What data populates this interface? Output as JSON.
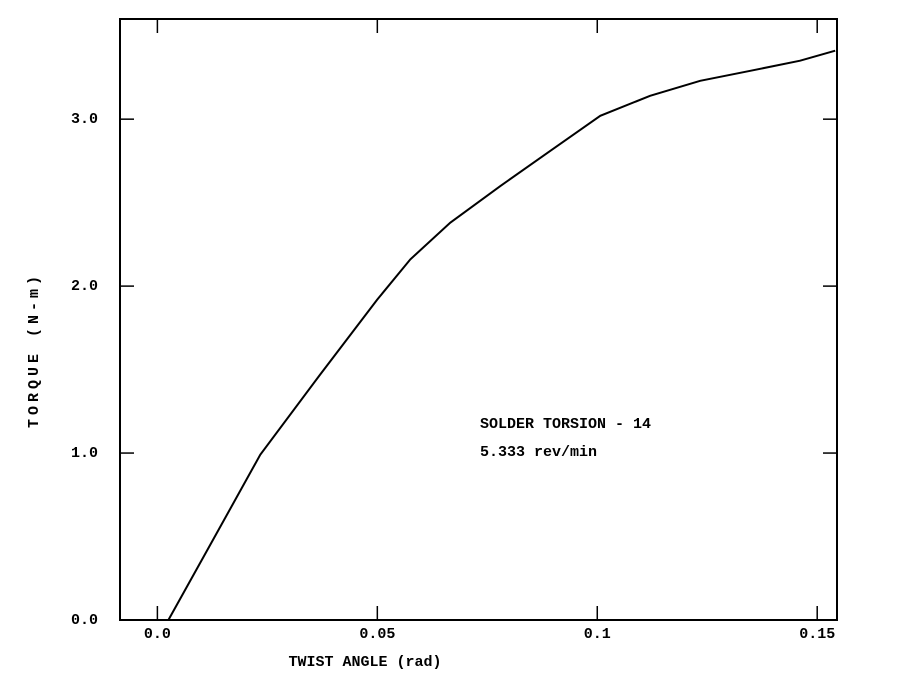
{
  "chart_data": {
    "type": "line",
    "xlabel": "TWIST ANGLE (rad)",
    "ylabel": "TORQUE (N-m)",
    "annotations": [
      "SOLDER TORSION - 14",
      "5.333 rev/min"
    ],
    "x": [
      0.0025,
      0.012,
      0.0234,
      0.037,
      0.05,
      0.0575,
      0.0666,
      0.078,
      0.0893,
      0.1007,
      0.112,
      0.1234,
      0.1348,
      0.1461,
      0.1541
    ],
    "values": [
      0,
      0.45,
      0.99,
      1.47,
      1.92,
      2.16,
      2.38,
      2.6,
      2.81,
      3.02,
      3.14,
      3.23,
      3.29,
      3.35,
      3.41
    ],
    "color": "#000000",
    "xlim": [
      -0.0085,
      0.1545
    ],
    "ylim": [
      0,
      3.6
    ],
    "xticks": [
      {
        "value": 0,
        "label": "0.0"
      },
      0.05,
      0.1,
      0.15
    ],
    "yticks": [
      {
        "value": 0,
        "label": "0.0"
      },
      {
        "value": 1,
        "label": "1.0"
      },
      {
        "value": 2,
        "label": "2.0"
      },
      {
        "value": 3,
        "label": "3.0"
      }
    ],
    "grid": false
  }
}
